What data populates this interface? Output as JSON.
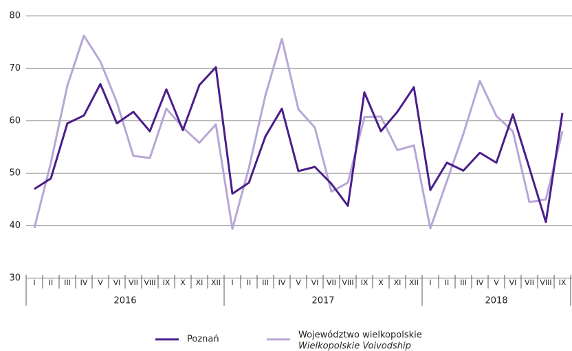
{
  "chart_data": {
    "type": "line",
    "groups": [
      {
        "label": "2016",
        "categories": [
          "I",
          "II",
          "III",
          "IV",
          "V",
          "VI",
          "VII",
          "VIII",
          "IX",
          "X",
          "XI",
          "XII"
        ]
      },
      {
        "label": "2017",
        "categories": [
          "I",
          "II",
          "III",
          "IV",
          "V",
          "VI",
          "VII",
          "VIII",
          "IX",
          "X",
          "XI",
          "XII"
        ]
      },
      {
        "label": "2018",
        "categories": [
          "I",
          "II",
          "III",
          "IV",
          "V",
          "VI",
          "VII",
          "VIII",
          "IX"
        ]
      }
    ],
    "series": [
      {
        "name": "Poznań",
        "color": "#4a1d8a",
        "values": [
          47,
          49,
          59.5,
          61,
          67,
          59.5,
          61.7,
          58,
          66,
          58.2,
          66.8,
          70.2,
          46.1,
          48.2,
          57,
          62.3,
          50.4,
          51.2,
          48,
          43.8,
          65.4,
          58,
          61.7,
          66.4,
          46.8,
          52,
          50.5,
          53.9,
          52,
          61.2,
          51,
          40.7,
          61.5
        ]
      },
      {
        "name": "Województwo wielkopolskie",
        "name_en": "Wielkopolskie Voivodship",
        "color": "#b8a6d6",
        "values": [
          39.6,
          52,
          66.7,
          76.2,
          71.3,
          63.5,
          53.3,
          52.9,
          62.3,
          58.7,
          55.8,
          59.3,
          39.4,
          51,
          64.8,
          75.6,
          62.2,
          58.7,
          46.5,
          48.2,
          60.7,
          60.8,
          54.4,
          55.3,
          39.5,
          48.5,
          57.5,
          67.6,
          60.9,
          58,
          44.5,
          45,
          58
        ]
      }
    ],
    "ylim": [
      30,
      80
    ],
    "yticks": [
      30,
      40,
      50,
      60,
      70,
      80
    ],
    "grid": true
  }
}
